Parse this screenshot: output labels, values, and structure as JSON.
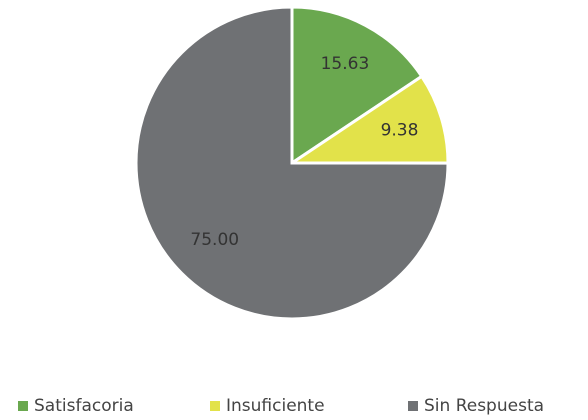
{
  "chart_data": {
    "type": "pie",
    "categories": [
      "Satisfacoria",
      "Insuficiente",
      "Sin Respuesta"
    ],
    "values": [
      15.63,
      9.38,
      75
    ],
    "value_labels": [
      "15.63",
      "9.38",
      "75.00"
    ],
    "colors": [
      "#6aa84f",
      "#e2e24a",
      "#6f7174"
    ],
    "legend": "bottom"
  }
}
